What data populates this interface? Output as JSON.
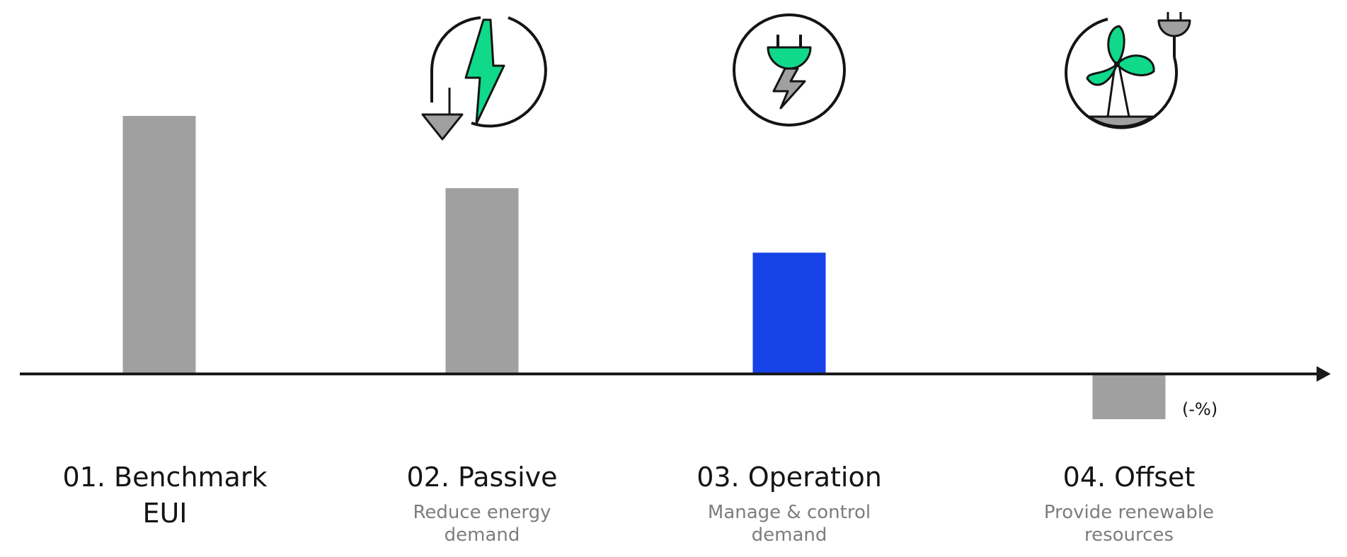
{
  "chart_data": {
    "type": "bar",
    "title": "",
    "xlabel": "",
    "ylabel": "",
    "ylim": [
      -20,
      100
    ],
    "grid": false,
    "legend": "none",
    "negative_label": "(-%)",
    "categories": [
      {
        "title_lines": [
          "01. Benchmark",
          "EUI"
        ],
        "subtitle_lines": [],
        "value": 100,
        "color": "#a0a0a0",
        "icon": ""
      },
      {
        "title_lines": [
          "02. Passive"
        ],
        "subtitle_lines": [
          "Reduce energy",
          "demand"
        ],
        "value": 72,
        "color": "#a0a0a0",
        "icon": "energy-reduction-icon"
      },
      {
        "title_lines": [
          "03. Operation"
        ],
        "subtitle_lines": [
          "Manage & control",
          "demand"
        ],
        "value": 47,
        "color": "#1642e8",
        "icon": "plug-lightning-icon"
      },
      {
        "title_lines": [
          "04. Offset"
        ],
        "subtitle_lines": [
          "Provide renewable",
          "resources"
        ],
        "value": -17,
        "color": "#a0a0a0",
        "icon": "wind-turbine-plug-icon"
      }
    ]
  },
  "colors": {
    "accent_green": "#10d98a",
    "icon_gray": "#a0a0a0",
    "axis": "#1a1a1a"
  }
}
